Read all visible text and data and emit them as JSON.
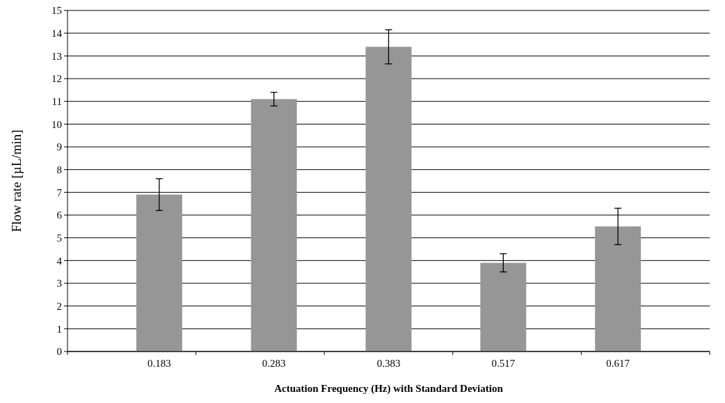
{
  "chart_data": {
    "type": "bar",
    "xlabel": "Actuation Frequency (Hz) with Standard Deviation",
    "ylabel": "Flow rate [µL/min]",
    "categories": [
      "0.183",
      "0.283",
      "0.383",
      "0.517",
      "0.617"
    ],
    "values": [
      6.9,
      11.1,
      13.4,
      3.9,
      5.5
    ],
    "errors": [
      0.7,
      0.3,
      0.75,
      0.4,
      0.8
    ],
    "color": "#969696",
    "ylim": [
      0,
      15
    ],
    "yticks": [
      0,
      1,
      2,
      3,
      4,
      5,
      6,
      7,
      8,
      9,
      10,
      11,
      12,
      13,
      14,
      15
    ],
    "grid": "y"
  }
}
